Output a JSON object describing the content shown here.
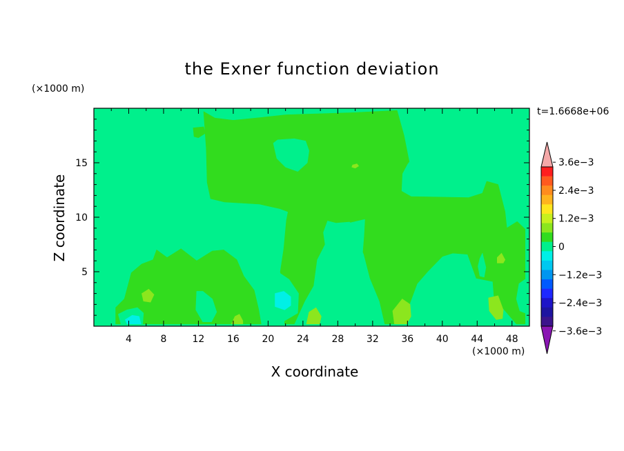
{
  "chart_data": {
    "type": "heatmap",
    "title": "the Exner function deviation",
    "xlabel": "X coordinate",
    "ylabel": "Z coordinate",
    "x_unit": "(×1000 m)",
    "z_unit": "(×1000 m)",
    "time_label": "t=1.6668e+06",
    "xlim": [
      0,
      50
    ],
    "zlim": [
      0,
      20
    ],
    "x_ticks": [
      4,
      8,
      12,
      16,
      20,
      24,
      28,
      32,
      36,
      40,
      44,
      48
    ],
    "z_ticks": [
      5,
      10,
      15
    ],
    "background_level": 0,
    "colorbar": {
      "labels": [
        "3.6e−3",
        "2.4e−3",
        "1.2e−3",
        "0",
        "−1.2e−3",
        "−2.4e−3",
        "−3.6e−3"
      ],
      "label_values": [
        0.0036,
        0.0024,
        0.0012,
        0,
        -0.0012,
        -0.0024,
        -0.0036
      ],
      "top_extend_color": "#f4a8a8",
      "bottom_extend_color": "#8a16b3",
      "colors_top_to_bottom": [
        "#ff1e1e",
        "#ff5a1e",
        "#ff8c1e",
        "#ffb41e",
        "#ffe61e",
        "#c8f01e",
        "#8ce61e",
        "#32dc1e",
        "#00f08c",
        "#00f0e6",
        "#00c8f0",
        "#0096f0",
        "#005aff",
        "#1e28ff",
        "#1e14c8",
        "#1e14a0",
        "#3c148c"
      ]
    },
    "contours": [
      {
        "level": 0.0006,
        "color": "#32dc1e",
        "polygons": [
          [
            [
              12.6,
              19.7
            ],
            [
              13.9,
              19.1
            ],
            [
              16.0,
              18.9
            ],
            [
              19.8,
              19.2
            ],
            [
              22.0,
              19.4
            ],
            [
              29.9,
              19.6
            ],
            [
              34.8,
              19.8
            ],
            [
              35.6,
              17.5
            ],
            [
              36.2,
              15.1
            ],
            [
              36.0,
              14.9
            ],
            [
              35.4,
              14.0
            ],
            [
              35.3,
              12.4
            ],
            [
              36.4,
              11.9
            ],
            [
              43.0,
              11.8
            ],
            [
              44.6,
              12.2
            ],
            [
              45.1,
              13.3
            ],
            [
              46.4,
              13.0
            ],
            [
              47.2,
              10.5
            ],
            [
              47.4,
              9.0
            ],
            [
              48.6,
              9.6
            ],
            [
              49.5,
              8.9
            ],
            [
              49.5,
              0.2
            ],
            [
              48.5,
              0.2
            ],
            [
              46.9,
              1.7
            ],
            [
              46.0,
              2.0
            ],
            [
              45.8,
              4.1
            ],
            [
              43.9,
              4.4
            ],
            [
              42.9,
              6.6
            ],
            [
              41.2,
              6.7
            ],
            [
              40.0,
              6.4
            ],
            [
              38.3,
              5.0
            ],
            [
              37.1,
              3.9
            ],
            [
              36.0,
              1.5
            ],
            [
              35.0,
              0.2
            ],
            [
              33.4,
              0.2
            ],
            [
              32.8,
              2.3
            ],
            [
              31.7,
              4.4
            ],
            [
              31.0,
              6.6
            ],
            [
              29.4,
              9.6
            ],
            [
              27.8,
              9.5
            ],
            [
              26.8,
              9.7
            ],
            [
              26.3,
              8.6
            ],
            [
              26.5,
              7.5
            ],
            [
              25.6,
              6.1
            ],
            [
              25.2,
              3.7
            ],
            [
              24.2,
              2.3
            ],
            [
              23.0,
              0.2
            ],
            [
              21.9,
              0.2
            ],
            [
              21.9,
              2.4
            ],
            [
              21.4,
              5.0
            ],
            [
              21.8,
              7.1
            ],
            [
              22.1,
              9.7
            ],
            [
              22.3,
              10.5
            ],
            [
              21.3,
              10.8
            ],
            [
              19.0,
              11.2
            ],
            [
              15.0,
              11.4
            ],
            [
              13.4,
              11.7
            ],
            [
              13.0,
              13.2
            ],
            [
              12.9,
              16.3
            ]
          ],
          [
            [
              2.5,
              0.2
            ],
            [
              2.5,
              1.7
            ],
            [
              3.5,
              2.5
            ],
            [
              4.3,
              4.9
            ],
            [
              5.5,
              5.7
            ],
            [
              6.8,
              6.1
            ],
            [
              7.2,
              7.0
            ],
            [
              8.4,
              6.3
            ],
            [
              10.0,
              7.1
            ],
            [
              11.8,
              6.0
            ],
            [
              13.6,
              6.9
            ],
            [
              14.9,
              7.0
            ],
            [
              16.4,
              6.1
            ],
            [
              17.2,
              4.6
            ],
            [
              18.4,
              3.3
            ],
            [
              18.9,
              1.6
            ],
            [
              19.2,
              0.2
            ]
          ],
          [
            [
              11.4,
              18.2
            ],
            [
              12.6,
              18.3
            ],
            [
              12.8,
              17.7
            ],
            [
              12.0,
              17.3
            ],
            [
              11.5,
              17.4
            ]
          ]
        ]
      },
      {
        "level": -0.0006,
        "color": "#00f08c",
        "polygons": [
          [
            [
              20.6,
              16.8
            ],
            [
              21.1,
              17.1
            ],
            [
              23.0,
              17.2
            ],
            [
              24.3,
              17.0
            ],
            [
              24.7,
              16.1
            ],
            [
              24.5,
              15.0
            ],
            [
              23.4,
              14.2
            ],
            [
              22.0,
              14.6
            ],
            [
              21.0,
              15.4
            ]
          ],
          [
            [
              27.9,
              9.2
            ],
            [
              31.1,
              9.8
            ],
            [
              31.0,
              8.3
            ],
            [
              30.8,
              6.3
            ],
            [
              30.5,
              4.2
            ],
            [
              30.1,
              2.6
            ],
            [
              28.7,
              1.6
            ],
            [
              27.0,
              1.0
            ],
            [
              25.9,
              2.0
            ],
            [
              26.2,
              3.7
            ],
            [
              26.6,
              6.0
            ],
            [
              27.3,
              7.9
            ]
          ],
          [
            [
              38.6,
              5.0
            ],
            [
              39.6,
              5.3
            ],
            [
              40.6,
              5.0
            ],
            [
              41.0,
              3.6
            ],
            [
              40.9,
              2.0
            ],
            [
              40.0,
              1.4
            ],
            [
              38.9,
              1.7
            ],
            [
              38.5,
              3.1
            ]
          ],
          [
            [
              44.3,
              6.2
            ],
            [
              44.6,
              6.7
            ],
            [
              45.0,
              5.4
            ],
            [
              44.8,
              4.5
            ],
            [
              44.3,
              4.6
            ],
            [
              44.1,
              5.5
            ]
          ],
          [
            [
              0.2,
              5.0
            ],
            [
              1.3,
              5.1
            ],
            [
              2.2,
              3.2
            ],
            [
              2.0,
              1.7
            ],
            [
              1.3,
              1.4
            ],
            [
              0.2,
              1.6
            ]
          ],
          [
            [
              19.5,
              4.7
            ],
            [
              21.1,
              5.0
            ],
            [
              22.4,
              4.3
            ],
            [
              23.5,
              3.0
            ],
            [
              23.4,
              1.2
            ],
            [
              21.9,
              0.5
            ],
            [
              20.0,
              0.6
            ],
            [
              19.1,
              1.7
            ],
            [
              18.9,
              3.3
            ]
          ],
          [
            [
              11.8,
              3.2
            ],
            [
              12.5,
              3.2
            ],
            [
              13.6,
              2.5
            ],
            [
              14.1,
              1.3
            ],
            [
              13.5,
              0.4
            ],
            [
              12.5,
              0.4
            ],
            [
              11.7,
              1.5
            ]
          ],
          [
            [
              48.8,
              3.9
            ],
            [
              49.5,
              4.3
            ],
            [
              49.5,
              1.2
            ],
            [
              48.9,
              1.4
            ],
            [
              48.5,
              2.5
            ]
          ],
          [
            [
              2.8,
              1.1
            ],
            [
              3.8,
              1.5
            ],
            [
              5.0,
              1.7
            ],
            [
              5.7,
              1.2
            ],
            [
              5.6,
              0.2
            ],
            [
              3.1,
              0.2
            ]
          ]
        ]
      },
      {
        "level": -0.0012,
        "color": "#00f0e6",
        "polygons": [
          [
            [
              20.8,
              3.0
            ],
            [
              21.8,
              3.2
            ],
            [
              22.6,
              2.7
            ],
            [
              22.6,
              1.9
            ],
            [
              21.9,
              1.5
            ],
            [
              20.8,
              1.8
            ]
          ],
          [
            [
              3.6,
              0.6
            ],
            [
              4.4,
              1.0
            ],
            [
              5.2,
              0.9
            ],
            [
              5.4,
              0.2
            ],
            [
              3.8,
              0.2
            ]
          ]
        ]
      },
      {
        "level": 0.0012,
        "color": "#8ce61e",
        "polygons": [
          [
            [
              5.5,
              3.0
            ],
            [
              6.3,
              3.4
            ],
            [
              6.9,
              2.9
            ],
            [
              6.5,
              2.2
            ],
            [
              5.7,
              2.3
            ]
          ],
          [
            [
              24.4,
              0.2
            ],
            [
              24.7,
              1.3
            ],
            [
              25.5,
              1.7
            ],
            [
              26.1,
              0.9
            ],
            [
              25.9,
              0.2
            ]
          ],
          [
            [
              15.8,
              0.2
            ],
            [
              16.2,
              0.9
            ],
            [
              16.7,
              1.1
            ],
            [
              17.1,
              0.5
            ],
            [
              17.1,
              0.2
            ]
          ],
          [
            [
              34.3,
              1.4
            ],
            [
              35.4,
              2.5
            ],
            [
              36.3,
              2.0
            ],
            [
              36.4,
              0.9
            ],
            [
              35.9,
              0.2
            ],
            [
              34.5,
              0.2
            ]
          ],
          [
            [
              45.3,
              2.6
            ],
            [
              46.4,
              2.8
            ],
            [
              47.0,
              1.5
            ],
            [
              46.9,
              0.7
            ],
            [
              46.2,
              0.6
            ],
            [
              45.4,
              1.4
            ]
          ],
          [
            [
              46.3,
              6.3
            ],
            [
              46.8,
              6.7
            ],
            [
              47.2,
              6.1
            ],
            [
              47.0,
              5.8
            ],
            [
              46.3,
              5.8
            ]
          ],
          [
            [
              29.7,
              14.8
            ],
            [
              30.2,
              14.9
            ],
            [
              30.4,
              14.7
            ],
            [
              30.0,
              14.5
            ],
            [
              29.6,
              14.6
            ]
          ]
        ]
      }
    ]
  }
}
